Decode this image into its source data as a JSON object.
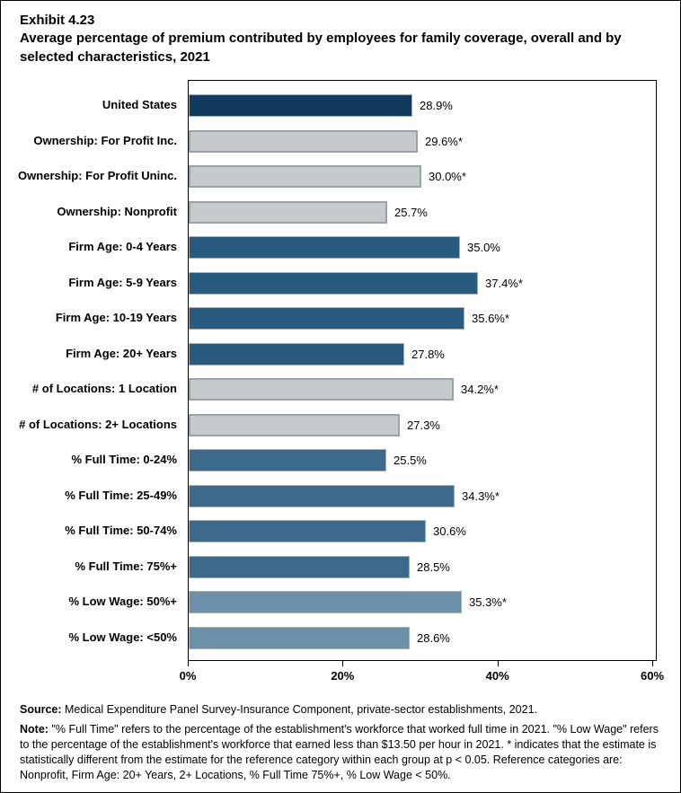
{
  "title": {
    "exhibit_number": "Exhibit 4.23",
    "heading": "Average percentage of premium contributed by employees for family coverage, overall and by selected characteristics, 2021"
  },
  "chart_data": {
    "type": "bar",
    "orientation": "horizontal",
    "title": "Average percentage of premium contributed by employees for family coverage, overall and by selected characteristics, 2021",
    "xlabel": "",
    "ylabel": "",
    "xlim": [
      0,
      60
    ],
    "grid": false,
    "legend": "none",
    "x_ticks": [
      {
        "value": 0,
        "label": "0%"
      },
      {
        "value": 20,
        "label": "20%"
      },
      {
        "value": 40,
        "label": "40%"
      },
      {
        "value": 60,
        "label": "60%"
      }
    ],
    "bars": [
      {
        "category": "United States",
        "value": 28.9,
        "value_label": "28.9%",
        "group": "overall",
        "fill": "#113A5E",
        "border": "#A9AEB2",
        "border_px": 1
      },
      {
        "category": "Ownership: For Profit Inc.",
        "value": 29.6,
        "value_label": "29.6%*",
        "group": "ownership",
        "fill": "#C5CACC",
        "border": "#9BA2A7",
        "border_px": 2
      },
      {
        "category": "Ownership: For Profit Uninc.",
        "value": 30.0,
        "value_label": "30.0%*",
        "group": "ownership",
        "fill": "#C5CACC",
        "border": "#9BA2A7",
        "border_px": 2
      },
      {
        "category": "Ownership: Nonprofit",
        "value": 25.7,
        "value_label": "25.7%",
        "group": "ownership",
        "fill": "#C5CACC",
        "border": "#9BA2A7",
        "border_px": 2
      },
      {
        "category": "Firm Age: 0-4 Years",
        "value": 35.0,
        "value_label": "35.0%",
        "group": "firm-age",
        "fill": "#2A5B7F",
        "border": "#A9AEB2",
        "border_px": 1
      },
      {
        "category": "Firm Age: 5-9 Years",
        "value": 37.4,
        "value_label": "37.4%*",
        "group": "firm-age",
        "fill": "#2A5B7F",
        "border": "#A9AEB2",
        "border_px": 1
      },
      {
        "category": "Firm Age: 10-19 Years",
        "value": 35.6,
        "value_label": "35.6%*",
        "group": "firm-age",
        "fill": "#2A5B7F",
        "border": "#A9AEB2",
        "border_px": 1
      },
      {
        "category": "Firm Age: 20+ Years",
        "value": 27.8,
        "value_label": "27.8%",
        "group": "firm-age",
        "fill": "#2A5B7F",
        "border": "#A9AEB2",
        "border_px": 1
      },
      {
        "category": "# of Locations: 1 Location",
        "value": 34.2,
        "value_label": "34.2%*",
        "group": "locations",
        "fill": "#C5CACC",
        "border": "#9BA2A7",
        "border_px": 2
      },
      {
        "category": "# of Locations: 2+ Locations",
        "value": 27.3,
        "value_label": "27.3%",
        "group": "locations",
        "fill": "#C5CACC",
        "border": "#9BA2A7",
        "border_px": 2
      },
      {
        "category": "% Full Time: 0-24%",
        "value": 25.5,
        "value_label": "25.5%",
        "group": "full-time",
        "fill": "#3D6A8B",
        "border": "#A9AEB2",
        "border_px": 1
      },
      {
        "category": "% Full Time: 25-49%",
        "value": 34.3,
        "value_label": "34.3%*",
        "group": "full-time",
        "fill": "#3D6A8B",
        "border": "#A9AEB2",
        "border_px": 1
      },
      {
        "category": "% Full Time: 50-74%",
        "value": 30.6,
        "value_label": "30.6%",
        "group": "full-time",
        "fill": "#3D6A8B",
        "border": "#A9AEB2",
        "border_px": 1
      },
      {
        "category": "% Full Time: 75%+",
        "value": 28.5,
        "value_label": "28.5%",
        "group": "full-time",
        "fill": "#3D6A8B",
        "border": "#A9AEB2",
        "border_px": 1
      },
      {
        "category": "% Low Wage: 50%+",
        "value": 35.3,
        "value_label": "35.3%*",
        "group": "low-wage",
        "fill": "#6D90AA",
        "border": "#A9AEB2",
        "border_px": 1
      },
      {
        "category": "% Low Wage: <50%",
        "value": 28.6,
        "value_label": "28.6%",
        "group": "low-wage",
        "fill": "#6D90AA",
        "border": "#A9AEB2",
        "border_px": 1
      }
    ]
  },
  "colors": {
    "overall_navy": "#113A5E",
    "firm_age_blue": "#2A5B7F",
    "full_time_blue": "#3D6A8B",
    "low_wage_blue": "#6D90AA",
    "gray_fill": "#C5CACC",
    "gray_border": "#9BA2A7",
    "axis_black": "#000000"
  },
  "footer": {
    "source_label": "Source:",
    "source_text": " Medical Expenditure Panel Survey-Insurance Component, private-sector establishments, 2021.",
    "note_label": "Note:",
    "note_text": " \"% Full Time\" refers to the percentage of the establishment's workforce that worked full time in 2021. \"% Low Wage\" refers to the percentage of the establishment's workforce that earned less than $13.50 per hour in 2021. * indicates that the estimate is statistically different from the estimate for the reference category within each group at p < 0.05.  Reference categories are: Nonprofit, Firm Age: 20+ Years, 2+ Locations, % Full Time 75%+, % Low Wage < 50%."
  }
}
